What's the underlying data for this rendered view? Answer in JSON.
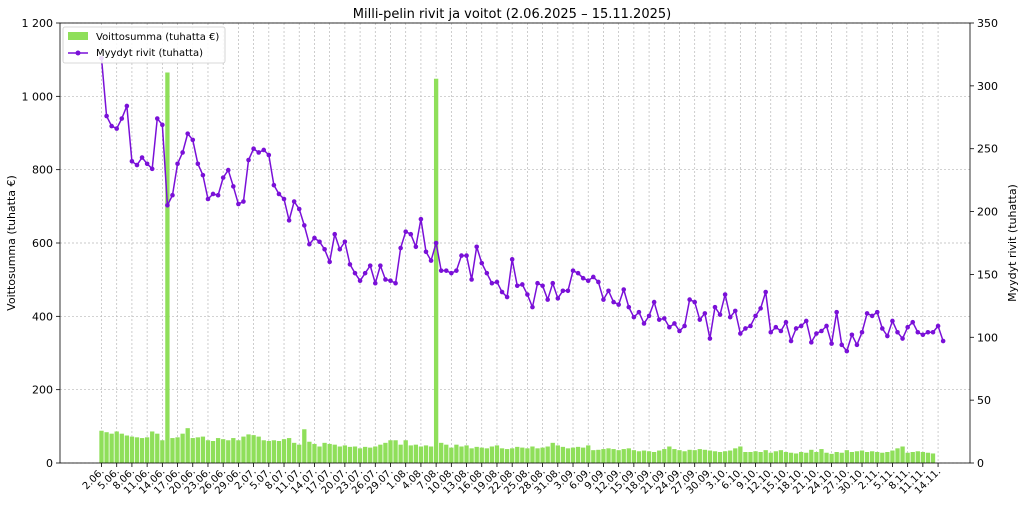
{
  "chart_data": {
    "type": "bar+line",
    "title": "Milli-pelin rivit ja voitot (2.06.2025 – 15.11.2025)",
    "xlabel": "",
    "ylabel_left": "Voittosumma (tuhatta €)",
    "ylabel_right": "Myydyt rivit (tuhatta)",
    "ylim_left": [
      0,
      1200
    ],
    "ylim_right": [
      0,
      350
    ],
    "yticks_left": [
      "0",
      "200",
      "400",
      "600",
      "800",
      "1 000",
      "1 200"
    ],
    "yticks_left_values": [
      0,
      200,
      400,
      600,
      800,
      1000,
      1200
    ],
    "yticks_right": [
      "0",
      "50",
      "100",
      "150",
      "200",
      "250",
      "300",
      "350"
    ],
    "yticks_right_values": [
      0,
      50,
      100,
      150,
      200,
      250,
      300,
      350
    ],
    "grid": true,
    "legend_position": "top-left",
    "colors": {
      "bars": "#8fdf5a",
      "line": "#7a10d8"
    },
    "x_tick_labels": [
      "2.06.",
      "5.06.",
      "8.06.",
      "11.06.",
      "14.06.",
      "17.06.",
      "20.06.",
      "23.06.",
      "26.06.",
      "29.06.",
      "2.07.",
      "5.07.",
      "8.07.",
      "11.07.",
      "14.07.",
      "17.07.",
      "20.07.",
      "23.07.",
      "26.07.",
      "29.07.",
      "1.08.",
      "4.08.",
      "7.08.",
      "10.08.",
      "13.08.",
      "16.08.",
      "19.08.",
      "22.08.",
      "25.08.",
      "28.08.",
      "31.08.",
      "3.09.",
      "6.09.",
      "9.09.",
      "12.09.",
      "15.09.",
      "18.09.",
      "21.09.",
      "24.09.",
      "27.09.",
      "30.09.",
      "3.10.",
      "6.10.",
      "9.10.",
      "12.10.",
      "15.10.",
      "18.10.",
      "21.10.",
      "24.10.",
      "27.10.",
      "30.10.",
      "2.11.",
      "5.11.",
      "8.11.",
      "11.11.",
      "14.11."
    ],
    "series": [
      {
        "name": "Voittosumma (tuhatta €)",
        "axis": "left",
        "kind": "bar",
        "values": [
          88,
          84,
          80,
          86,
          80,
          75,
          72,
          70,
          68,
          70,
          86,
          80,
          62,
          1065,
          68,
          70,
          80,
          95,
          68,
          70,
          72,
          62,
          60,
          68,
          65,
          62,
          68,
          62,
          72,
          78,
          76,
          72,
          62,
          60,
          62,
          60,
          65,
          68,
          55,
          50,
          92,
          58,
          52,
          45,
          55,
          52,
          50,
          45,
          48,
          44,
          45,
          40,
          44,
          42,
          45,
          50,
          55,
          62,
          62,
          50,
          62,
          48,
          50,
          45,
          48,
          45,
          1048,
          55,
          50,
          42,
          50,
          45,
          48,
          40,
          44,
          42,
          40,
          45,
          48,
          40,
          38,
          40,
          44,
          42,
          40,
          45,
          40,
          42,
          45,
          55,
          48,
          44,
          40,
          42,
          44,
          42,
          48,
          35,
          36,
          38,
          40,
          38,
          35,
          38,
          40,
          35,
          32,
          34,
          32,
          30,
          34,
          38,
          45,
          38,
          35,
          32,
          36,
          35,
          38,
          36,
          34,
          32,
          30,
          32,
          34,
          40,
          45,
          30,
          30,
          32,
          30,
          35,
          28,
          32,
          35,
          30,
          28,
          26,
          30,
          28,
          36,
          30,
          38,
          28,
          25,
          30,
          28,
          35,
          30,
          32,
          34,
          30,
          32,
          30,
          28,
          30,
          34,
          40,
          45,
          28,
          30,
          32,
          30,
          28,
          26
        ]
      },
      {
        "name": "Myydyt rivit (tuhatta)",
        "axis": "right",
        "kind": "line",
        "values": [
          322,
          276,
          268,
          266,
          274,
          284,
          240,
          237,
          243,
          238,
          234,
          274,
          269,
          205,
          213,
          238,
          247,
          262,
          257,
          238,
          229,
          210,
          214,
          213,
          227,
          233,
          220,
          206,
          208,
          241,
          250,
          247,
          249,
          245,
          221,
          214,
          210,
          193,
          208,
          202,
          189,
          174,
          179,
          176,
          170,
          160,
          182,
          170,
          176,
          158,
          151,
          145,
          151,
          157,
          143,
          157,
          146,
          145,
          143,
          171,
          184,
          182,
          172,
          194,
          168,
          161,
          175,
          153,
          153,
          151,
          153,
          165,
          165,
          146,
          172,
          159,
          151,
          143,
          144,
          136,
          132,
          162,
          141,
          142,
          134,
          124,
          143,
          141,
          130,
          143,
          131,
          137,
          137,
          153,
          151,
          147,
          145,
          148,
          144,
          130,
          137,
          128,
          126,
          138,
          124,
          116,
          120,
          111,
          117,
          128,
          114,
          115,
          108,
          111,
          105,
          109,
          130,
          128,
          114,
          119,
          99,
          124,
          118,
          134,
          116,
          121,
          103,
          107,
          109,
          117,
          123,
          136,
          104,
          108,
          105,
          112,
          97,
          107,
          109,
          113,
          96,
          103,
          105,
          109,
          95,
          120,
          94,
          89,
          102,
          94,
          104,
          119,
          117,
          120,
          107,
          101,
          113,
          104,
          99,
          108,
          112,
          104,
          102,
          104,
          104,
          109,
          97
        ]
      }
    ]
  }
}
